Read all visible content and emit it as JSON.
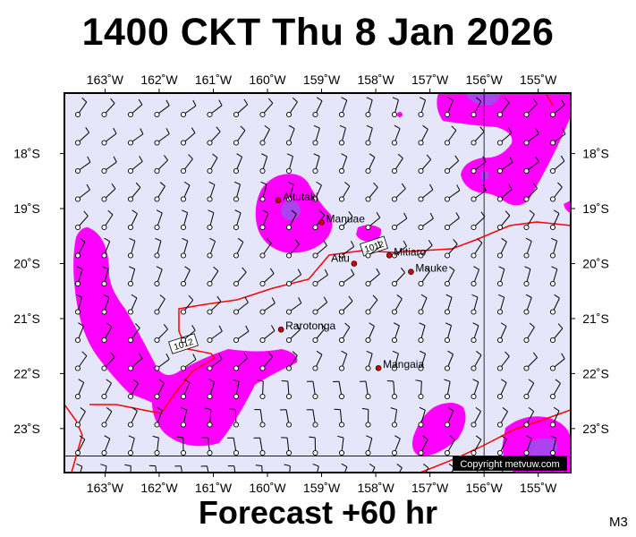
{
  "header": {
    "title": "1400 CKT Thu 8 Jan 2026"
  },
  "footer": {
    "forecast": "Forecast +60 hr",
    "model": "M3"
  },
  "map": {
    "lon_range": [
      -163.75,
      -154.4
    ],
    "lat_range": [
      -23.8,
      -16.9
    ],
    "lon_ticks": [
      {
        "value": -163,
        "label": "163˚W"
      },
      {
        "value": -162,
        "label": "162˚W"
      },
      {
        "value": -161,
        "label": "161˚W"
      },
      {
        "value": -160,
        "label": "160˚W"
      },
      {
        "value": -159,
        "label": "159˚W"
      },
      {
        "value": -158,
        "label": "158˚W"
      },
      {
        "value": -157,
        "label": "157˚W"
      },
      {
        "value": -156,
        "label": "156˚W"
      },
      {
        "value": -155,
        "label": "155˚W"
      }
    ],
    "lat_ticks": [
      {
        "value": -18,
        "label": "18˚S"
      },
      {
        "value": -19,
        "label": "19˚S"
      },
      {
        "value": -20,
        "label": "20˚S"
      },
      {
        "value": -21,
        "label": "21˚S"
      },
      {
        "value": -22,
        "label": "22˚S"
      },
      {
        "value": -23,
        "label": "23˚S"
      }
    ],
    "places": [
      {
        "name": "Aitutaki",
        "lon": -159.8,
        "lat": -18.85
      },
      {
        "name": "Manuae",
        "lon": -159.0,
        "lat": -19.25
      },
      {
        "name": "Atiu",
        "lon": -158.4,
        "lat": -20.0
      },
      {
        "name": "Mitiaro",
        "lon": -157.75,
        "lat": -19.85
      },
      {
        "name": "Mauke",
        "lon": -157.35,
        "lat": -20.15
      },
      {
        "name": "Rarotonga",
        "lon": -159.75,
        "lat": -21.2
      },
      {
        "name": "Mangaia",
        "lon": -157.95,
        "lat": -21.9
      }
    ],
    "isobar_labels": [
      "1012",
      "1012"
    ],
    "copyright": "Copyright metvuw.com",
    "colors": {
      "ocean": "#e6e6fa",
      "rain_light": "#ff00ff",
      "rain_heavy": "#aa44ee",
      "isobar": "#ff0000",
      "station": "#cc0000"
    }
  }
}
